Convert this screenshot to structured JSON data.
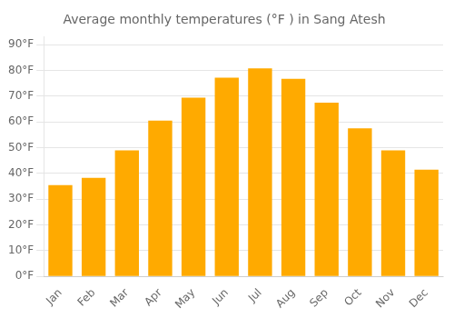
{
  "chart_data": {
    "type": "bar",
    "title": "Average monthly temperatures (°F ) in Sang Atesh",
    "categories": [
      "Jan",
      "Feb",
      "Mar",
      "Apr",
      "May",
      "Jun",
      "Jul",
      "Aug",
      "Sep",
      "Oct",
      "Nov",
      "Dec"
    ],
    "values": [
      35.5,
      38.3,
      49.0,
      60.5,
      69.5,
      77.2,
      80.8,
      76.8,
      67.5,
      57.5,
      49.0,
      41.5
    ],
    "color": "#FFAA00",
    "ylim": [
      0,
      93
    ],
    "yticks": [
      {
        "value": 0,
        "label": "0°F"
      },
      {
        "value": 10,
        "label": "10°F"
      },
      {
        "value": 20,
        "label": "20°F"
      },
      {
        "value": 30,
        "label": "30°F"
      },
      {
        "value": 40,
        "label": "40°F"
      },
      {
        "value": 50,
        "label": "50°F"
      },
      {
        "value": 60,
        "label": "60°F"
      },
      {
        "value": 70,
        "label": "70°F"
      },
      {
        "value": 80,
        "label": "80°F"
      },
      {
        "value": 90,
        "label": "90°F"
      }
    ],
    "grid": true
  }
}
